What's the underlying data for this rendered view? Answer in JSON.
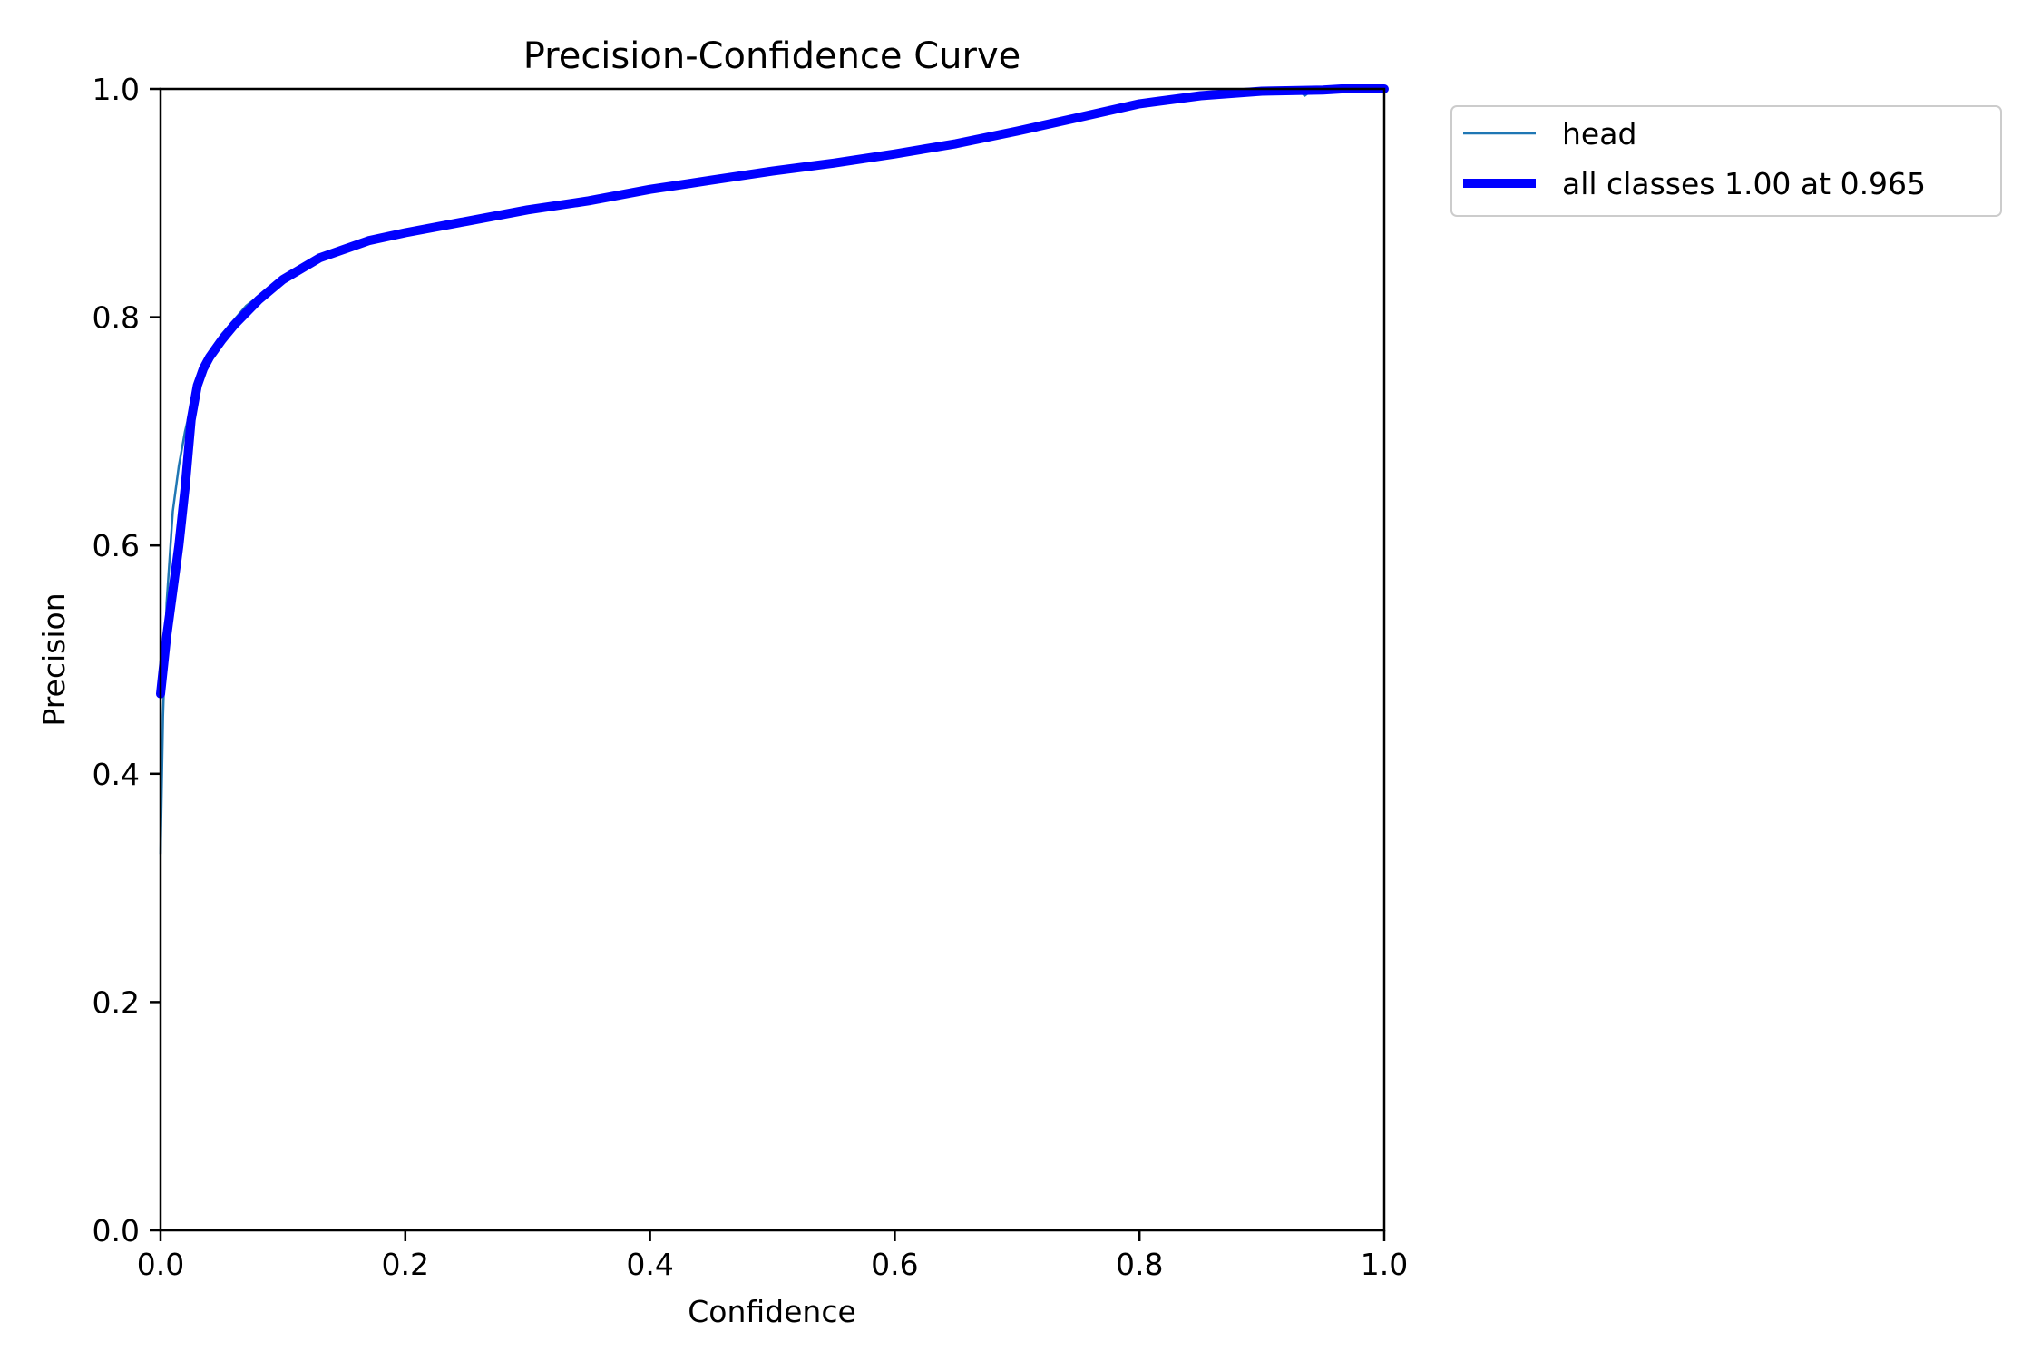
{
  "chart_data": {
    "type": "line",
    "title": "Precision-Confidence Curve",
    "xlabel": "Confidence",
    "ylabel": "Precision",
    "xlim": [
      0.0,
      1.0
    ],
    "ylim": [
      0.0,
      1.0
    ],
    "xticks": [
      "0.0",
      "0.2",
      "0.4",
      "0.6",
      "0.8",
      "1.0"
    ],
    "yticks": [
      "0.0",
      "0.2",
      "0.4",
      "0.6",
      "0.8",
      "1.0"
    ],
    "grid": false,
    "legend_position": "outside-top-right",
    "series": [
      {
        "name": "head",
        "color": "#1f77b4",
        "x": [
          0.0,
          0.002,
          0.005,
          0.01,
          0.015,
          0.02,
          0.03,
          0.04,
          0.05,
          0.07,
          0.1,
          0.13,
          0.17,
          0.2,
          0.25,
          0.3,
          0.35,
          0.4,
          0.45,
          0.5,
          0.55,
          0.6,
          0.65,
          0.7,
          0.75,
          0.8,
          0.85,
          0.9,
          0.93,
          0.935,
          0.94,
          0.95,
          0.965,
          1.0
        ],
        "y": [
          0.33,
          0.45,
          0.55,
          0.63,
          0.67,
          0.7,
          0.745,
          0.77,
          0.785,
          0.81,
          0.835,
          0.852,
          0.868,
          0.876,
          0.885,
          0.895,
          0.902,
          0.912,
          0.92,
          0.928,
          0.935,
          0.943,
          0.952,
          0.963,
          0.975,
          0.987,
          0.994,
          0.998,
          0.999,
          0.994,
          0.998,
          1.0,
          1.0,
          1.0
        ]
      },
      {
        "name": "all classes 1.00 at 0.965",
        "color": "#0000ff",
        "x": [
          0.0,
          0.005,
          0.01,
          0.015,
          0.02,
          0.025,
          0.03,
          0.035,
          0.04,
          0.05,
          0.06,
          0.08,
          0.1,
          0.13,
          0.17,
          0.2,
          0.25,
          0.3,
          0.35,
          0.4,
          0.45,
          0.5,
          0.55,
          0.6,
          0.65,
          0.7,
          0.75,
          0.8,
          0.85,
          0.9,
          0.95,
          0.965,
          1.0
        ],
        "y": [
          0.47,
          0.52,
          0.56,
          0.6,
          0.65,
          0.71,
          0.74,
          0.755,
          0.765,
          0.78,
          0.793,
          0.815,
          0.833,
          0.852,
          0.867,
          0.874,
          0.884,
          0.894,
          0.902,
          0.912,
          0.92,
          0.928,
          0.935,
          0.943,
          0.952,
          0.963,
          0.975,
          0.987,
          0.994,
          0.998,
          0.999,
          1.0,
          1.0
        ]
      }
    ]
  },
  "colors": {
    "head": "#1f77b4",
    "all_classes": "#0000ff"
  }
}
